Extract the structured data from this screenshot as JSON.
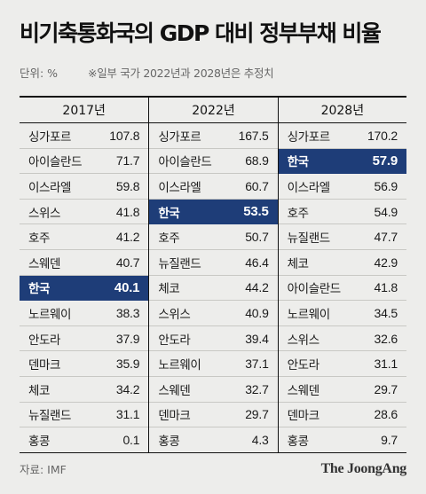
{
  "title": "비기축통화국의 GDP 대비 정부부채 비율",
  "unit_label": "단위: %",
  "note": "※일부 국가 2022년과 2028년은 추정치",
  "source": "자료: IMF",
  "brand": "The JoongAng",
  "colors": {
    "highlight_bg": "#1e3d78",
    "highlight_text": "#ffffff",
    "background": "#ededeb"
  },
  "chart_data": {
    "type": "table",
    "title": "비기축통화국의 GDP 대비 정부부채 비율",
    "unit": "%",
    "highlight": "한국",
    "columns": [
      {
        "year": "2017년",
        "rows": [
          {
            "country": "싱가포르",
            "value": "107.8"
          },
          {
            "country": "아이슬란드",
            "value": "71.7"
          },
          {
            "country": "이스라엘",
            "value": "59.8"
          },
          {
            "country": "스위스",
            "value": "41.8"
          },
          {
            "country": "호주",
            "value": "41.2"
          },
          {
            "country": "스웨덴",
            "value": "40.7"
          },
          {
            "country": "한국",
            "value": "40.1"
          },
          {
            "country": "노르웨이",
            "value": "38.3"
          },
          {
            "country": "안도라",
            "value": "37.9"
          },
          {
            "country": "덴마크",
            "value": "35.9"
          },
          {
            "country": "체코",
            "value": "34.2"
          },
          {
            "country": "뉴질랜드",
            "value": "31.1"
          },
          {
            "country": "홍콩",
            "value": "0.1"
          }
        ]
      },
      {
        "year": "2022년",
        "rows": [
          {
            "country": "싱가포르",
            "value": "167.5"
          },
          {
            "country": "아이슬란드",
            "value": "68.9"
          },
          {
            "country": "이스라엘",
            "value": "60.7"
          },
          {
            "country": "한국",
            "value": "53.5"
          },
          {
            "country": "호주",
            "value": "50.7"
          },
          {
            "country": "뉴질랜드",
            "value": "46.4"
          },
          {
            "country": "체코",
            "value": "44.2"
          },
          {
            "country": "스위스",
            "value": "40.9"
          },
          {
            "country": "안도라",
            "value": "39.4"
          },
          {
            "country": "노르웨이",
            "value": "37.1"
          },
          {
            "country": "스웨덴",
            "value": "32.7"
          },
          {
            "country": "덴마크",
            "value": "29.7"
          },
          {
            "country": "홍콩",
            "value": "4.3"
          }
        ]
      },
      {
        "year": "2028년",
        "rows": [
          {
            "country": "싱가포르",
            "value": "170.2"
          },
          {
            "country": "한국",
            "value": "57.9"
          },
          {
            "country": "이스라엘",
            "value": "56.9"
          },
          {
            "country": "호주",
            "value": "54.9"
          },
          {
            "country": "뉴질랜드",
            "value": "47.7"
          },
          {
            "country": "체코",
            "value": "42.9"
          },
          {
            "country": "아이슬란드",
            "value": "41.8"
          },
          {
            "country": "노르웨이",
            "value": "34.5"
          },
          {
            "country": "스위스",
            "value": "32.6"
          },
          {
            "country": "안도라",
            "value": "31.1"
          },
          {
            "country": "스웨덴",
            "value": "29.7"
          },
          {
            "country": "덴마크",
            "value": "28.6"
          },
          {
            "country": "홍콩",
            "value": "9.7"
          }
        ]
      }
    ]
  }
}
